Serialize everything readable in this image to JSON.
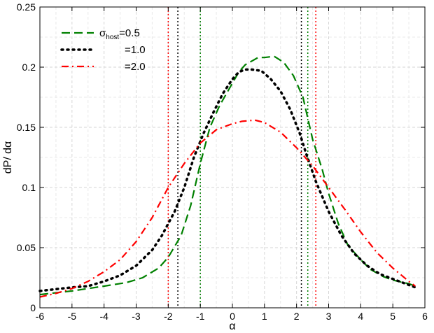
{
  "chart_data": {
    "type": "line",
    "title": "",
    "xlabel": "α",
    "ylabel": "dP/ dα",
    "xlim": [
      -6,
      6
    ],
    "ylim": [
      0,
      0.25
    ],
    "xticks": [
      "-6",
      "-5",
      "-4",
      "-3",
      "-2",
      "-1",
      "0",
      "1",
      "2",
      "3",
      "4",
      "5",
      "6"
    ],
    "yticks": [
      "0",
      "0.05",
      "0.1",
      "0.15",
      "0.2",
      "0.25"
    ],
    "grid": true,
    "legend_position": "top-left",
    "legend": {
      "entries": [
        {
          "symbol_prefix": "σ",
          "subscript": "host",
          "label": "=0.5",
          "color": "#008000",
          "dash": "dashed"
        },
        {
          "symbol_prefix": "",
          "subscript": "",
          "label": "=1.0",
          "color": "#000000",
          "dash": "dotted"
        },
        {
          "symbol_prefix": "",
          "subscript": "",
          "label": "=2.0",
          "color": "#ff0000",
          "dash": "dashdot"
        }
      ]
    },
    "series": [
      {
        "color": "#008000",
        "dash": "dashed",
        "x": [
          -6,
          -5,
          -4,
          -3.3,
          -2.8,
          -2.3,
          -2.0,
          -1.6,
          -1.3,
          -1.0,
          -0.7,
          -0.4,
          -0.1,
          0.2,
          0.4,
          0.6,
          0.8,
          1.0,
          1.3,
          1.6,
          1.9,
          2.2,
          2.5,
          2.8,
          3.0,
          3.3,
          3.6,
          4.0,
          4.3,
          4.7,
          5.0,
          5.5,
          5.7
        ],
        "y": [
          0.011,
          0.014,
          0.018,
          0.021,
          0.025,
          0.033,
          0.042,
          0.06,
          0.085,
          0.12,
          0.15,
          0.168,
          0.182,
          0.196,
          0.202,
          0.205,
          0.208,
          0.208,
          0.209,
          0.204,
          0.193,
          0.175,
          0.14,
          0.115,
          0.095,
          0.07,
          0.052,
          0.04,
          0.032,
          0.026,
          0.023,
          0.02,
          0.018
        ]
      },
      {
        "color": "#000000",
        "dash": "dotted",
        "x": [
          -6,
          -5,
          -4.5,
          -4,
          -3.5,
          -3,
          -2.5,
          -2.2,
          -1.8,
          -1.5,
          -1.2,
          -0.9,
          -0.6,
          -0.3,
          0.0,
          0.2,
          0.4,
          0.6,
          0.9,
          1.2,
          1.5,
          1.8,
          2.1,
          2.3,
          2.6,
          3.0,
          3.4,
          3.8,
          4.2,
          4.6,
          5.0,
          5.4,
          5.7
        ],
        "y": [
          0.014,
          0.017,
          0.018,
          0.022,
          0.027,
          0.035,
          0.048,
          0.06,
          0.08,
          0.1,
          0.125,
          0.145,
          0.162,
          0.178,
          0.19,
          0.196,
          0.198,
          0.198,
          0.197,
          0.19,
          0.18,
          0.165,
          0.145,
          0.128,
          0.105,
          0.08,
          0.06,
          0.045,
          0.035,
          0.028,
          0.024,
          0.02,
          0.017
        ]
      },
      {
        "color": "#ff0000",
        "dash": "dashdot",
        "x": [
          -6,
          -5.5,
          -5,
          -4.5,
          -4,
          -3.5,
          -3,
          -2.5,
          -2,
          -1.5,
          -1.0,
          -0.5,
          0.0,
          0.3,
          0.7,
          1.0,
          1.5,
          2.0,
          2.5,
          3.0,
          3.5,
          4.0,
          4.5,
          5.0,
          5.5,
          5.7
        ],
        "y": [
          0.009,
          0.012,
          0.016,
          0.022,
          0.03,
          0.04,
          0.055,
          0.075,
          0.1,
          0.12,
          0.137,
          0.148,
          0.153,
          0.155,
          0.156,
          0.154,
          0.146,
          0.133,
          0.118,
          0.1,
          0.082,
          0.063,
          0.046,
          0.033,
          0.022,
          0.018
        ]
      }
    ],
    "vlines": [
      {
        "x": -2.0,
        "color": "#ff0000"
      },
      {
        "x": -1.7,
        "color": "#000000"
      },
      {
        "x": -1.0,
        "color": "#008000"
      },
      {
        "x": 2.15,
        "color": "#000000"
      },
      {
        "x": 2.35,
        "color": "#008000"
      },
      {
        "x": 2.6,
        "color": "#ff0000"
      }
    ]
  }
}
